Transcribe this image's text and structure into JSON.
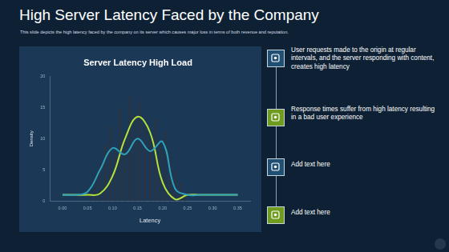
{
  "header": {
    "title": "High Server Latency Faced by the Company",
    "subtitle": "This slide depicts the high latency faced by the company on its server which causes major loss in terms of both revenue and reputation."
  },
  "chart_data": {
    "type": "histogram",
    "title": "Server Latency High Load",
    "x_label": "Latency",
    "y_label": "Density",
    "bins": [
      0.05,
      0.06,
      0.07,
      0.08,
      0.09,
      0.1,
      0.11,
      0.12,
      0.13,
      0.14,
      0.15,
      0.16,
      0.17,
      0.18,
      0.19,
      0.2,
      0.21,
      0.22,
      0.23,
      0.24,
      0.25
    ],
    "counts": [
      2,
      4,
      6,
      9,
      12,
      8,
      15,
      11,
      17,
      14,
      16,
      12,
      10,
      13,
      9,
      11,
      7,
      5,
      3,
      1
    ],
    "color": "#2b3440",
    "x": [
      0,
      0.025,
      0.05,
      0.075,
      0.1,
      0.125,
      0.15,
      0.175,
      0.2,
      0.225,
      0.25,
      0.275,
      0.3,
      0.325,
      0.35
    ],
    "series": [
      {
        "type": "line",
        "color": "#2fa1b8",
        "values": [
          1,
          1,
          1.5,
          5,
          8.5,
          7.5,
          10,
          8,
          9.5,
          2,
          1,
          1,
          1,
          1,
          1
        ]
      },
      {
        "type": "line",
        "color": "#b5e23b",
        "values": [
          1,
          1,
          1,
          1.2,
          4,
          10,
          13.5,
          11,
          3,
          0.3,
          1,
          1,
          1,
          1,
          1
        ]
      }
    ],
    "xlim": [
      0,
      0.35
    ],
    "xticks": [
      {
        "value": 0,
        "label": "0.00"
      },
      {
        "value": 0.05,
        "label": "0.05"
      },
      {
        "value": 0.1,
        "label": "0.10"
      },
      {
        "value": 0.15,
        "label": "0.15"
      },
      {
        "value": 0.2,
        "label": "0.20"
      },
      {
        "value": 0.25,
        "label": "0.25"
      },
      {
        "value": 0.3,
        "label": "0.30"
      },
      {
        "value": 0.35,
        "label": "0.35"
      }
    ],
    "ylim": [
      0,
      20
    ],
    "yticks": [
      0,
      5,
      10,
      15,
      20
    ],
    "grid": false
  },
  "points": [
    {
      "text": "User requests made to the origin at regular intervals, and the server responding with content, creates high latency"
    },
    {
      "text": "Response times suffer from high latency resulting in a bad user experience"
    },
    {
      "text": "Add text here"
    },
    {
      "text": "Add text here"
    }
  ]
}
